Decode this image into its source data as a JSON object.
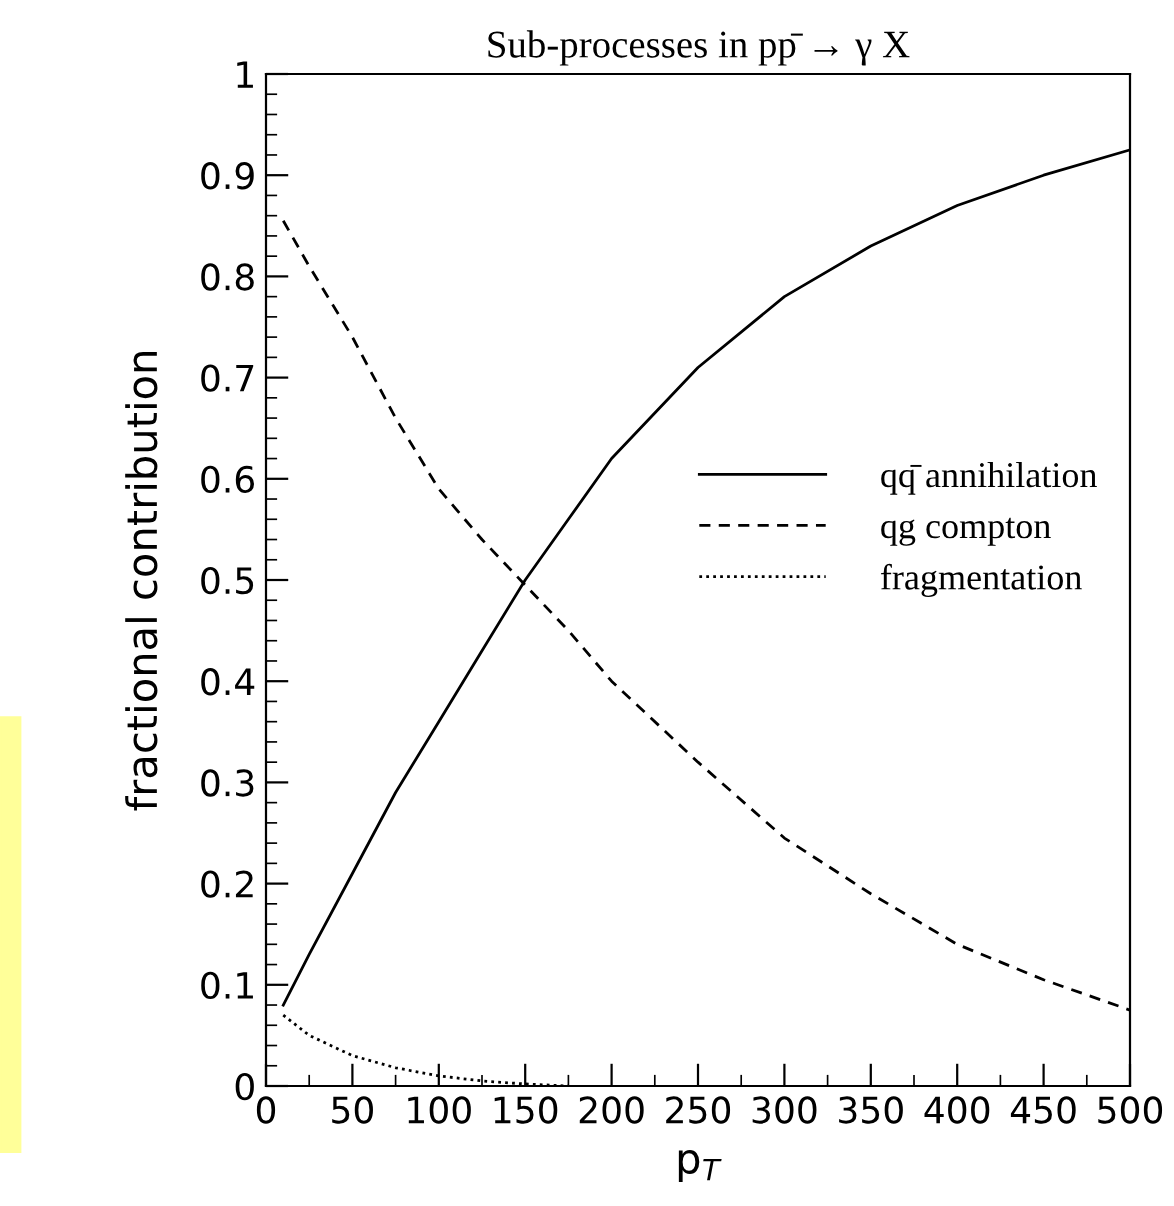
{
  "chart_data": {
    "type": "line",
    "title": "Sub-processes in pp̄ → γ X",
    "xlabel": "p$_{T}$",
    "ylabel": "fractional contribution",
    "xlim": [
      0,
      500
    ],
    "ylim": [
      0,
      1
    ],
    "xticks": [
      0,
      50,
      100,
      150,
      200,
      250,
      300,
      350,
      400,
      450,
      500
    ],
    "yticks": [
      0,
      0.1,
      0.2,
      0.3,
      0.4,
      0.5,
      0.6,
      0.7,
      0.8,
      0.9,
      1
    ],
    "grid": false,
    "legend": "right",
    "marker": "none",
    "series": [
      {
        "name": "qq̄ annihilation",
        "color": "#000000",
        "line_style": "solid",
        "x": [
          10,
          25,
          50,
          75,
          100,
          125,
          150,
          175,
          200,
          250,
          300,
          350,
          400,
          450,
          500
        ],
        "values": [
          0.08,
          0.13,
          0.21,
          0.29,
          0.36,
          0.43,
          0.5,
          0.56,
          0.62,
          0.71,
          0.78,
          0.83,
          0.87,
          0.9,
          0.925
        ]
      },
      {
        "name": "qg compton",
        "color": "#000000",
        "line_style": "dashed",
        "x": [
          10,
          25,
          50,
          75,
          100,
          125,
          150,
          175,
          200,
          250,
          300,
          350,
          400,
          450,
          500
        ],
        "values": [
          0.855,
          0.81,
          0.74,
          0.66,
          0.59,
          0.54,
          0.495,
          0.45,
          0.4,
          0.32,
          0.245,
          0.19,
          0.14,
          0.105,
          0.075
        ]
      },
      {
        "name": "fragmentation",
        "color": "#000000",
        "line_style": "dotted",
        "x": [
          10,
          25,
          50,
          75,
          100,
          125,
          150,
          175
        ],
        "values": [
          0.07,
          0.05,
          0.03,
          0.018,
          0.01,
          0.005,
          0.002,
          0.0
        ]
      }
    ]
  }
}
